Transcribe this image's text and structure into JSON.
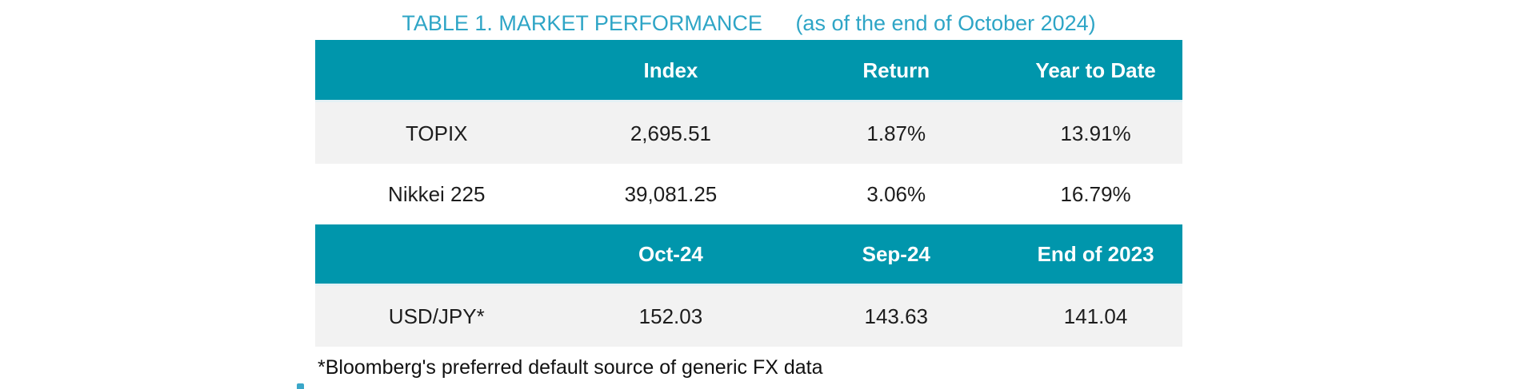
{
  "caption": {
    "title": "TABLE 1. MARKET PERFORMANCE",
    "subtitle": "(as of the end of October 2024)"
  },
  "colors": {
    "header_teal": "#0096ac",
    "caption_teal": "#2ea5c6",
    "row_gray": "#f2f2f2",
    "row_white": "#ffffff",
    "body_text": "#1d1d1d",
    "header_text": "#ffffff"
  },
  "equity": {
    "headers": [
      "",
      "Index",
      "Return",
      "Year to Date"
    ],
    "rows": [
      {
        "label": "TOPIX",
        "values": [
          "2,695.51",
          "1.87%",
          "13.91%"
        ]
      },
      {
        "label": "Nikkei 225",
        "values": [
          "39,081.25",
          "3.06%",
          "16.79%"
        ]
      }
    ]
  },
  "fx": {
    "headers": [
      "",
      "Oct-24",
      "Sep-24",
      "End of 2023"
    ],
    "rows": [
      {
        "label": "USD/JPY*",
        "values": [
          "152.03",
          "143.63",
          "141.04"
        ]
      }
    ]
  },
  "footnote": "*Bloomberg's preferred default source of generic FX data"
}
